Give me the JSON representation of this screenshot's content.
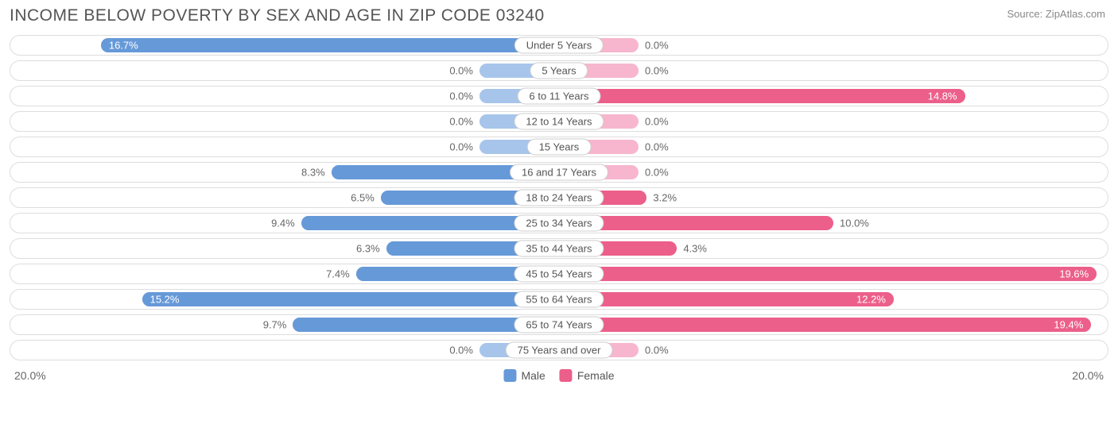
{
  "title": "INCOME BELOW POVERTY BY SEX AND AGE IN ZIP CODE 03240",
  "source": "Source: ZipAtlas.com",
  "chart": {
    "type": "diverging-bar",
    "max_value": 20.0,
    "base_bar_pct_of_half": 14.5,
    "colors": {
      "male_base": "#a7c5eb",
      "male_fill": "#6699d8",
      "female_base": "#f7b6ce",
      "female_fill": "#ec5f8a",
      "pill_border": "#dddddd",
      "label_border": "#cccccc",
      "text": "#666666",
      "title_text": "#555555",
      "background": "#ffffff"
    },
    "fontsize": {
      "title": 21,
      "labels": 13,
      "axis": 14,
      "legend": 14
    },
    "rows": [
      {
        "category": "Under 5 Years",
        "male": 16.7,
        "female": 0.0
      },
      {
        "category": "5 Years",
        "male": 0.0,
        "female": 0.0
      },
      {
        "category": "6 to 11 Years",
        "male": 0.0,
        "female": 14.8
      },
      {
        "category": "12 to 14 Years",
        "male": 0.0,
        "female": 0.0
      },
      {
        "category": "15 Years",
        "male": 0.0,
        "female": 0.0
      },
      {
        "category": "16 and 17 Years",
        "male": 8.3,
        "female": 0.0
      },
      {
        "category": "18 to 24 Years",
        "male": 6.5,
        "female": 3.2
      },
      {
        "category": "25 to 34 Years",
        "male": 9.4,
        "female": 10.0
      },
      {
        "category": "35 to 44 Years",
        "male": 6.3,
        "female": 4.3
      },
      {
        "category": "45 to 54 Years",
        "male": 7.4,
        "female": 19.6
      },
      {
        "category": "55 to 64 Years",
        "male": 15.2,
        "female": 12.2
      },
      {
        "category": "65 to 74 Years",
        "male": 9.7,
        "female": 19.4
      },
      {
        "category": "75 Years and over",
        "male": 0.0,
        "female": 0.0
      }
    ],
    "axis_label_left": "20.0%",
    "axis_label_right": "20.0%",
    "legend": [
      {
        "label": "Male",
        "color": "#6699d8"
      },
      {
        "label": "Female",
        "color": "#ec5f8a"
      }
    ]
  }
}
